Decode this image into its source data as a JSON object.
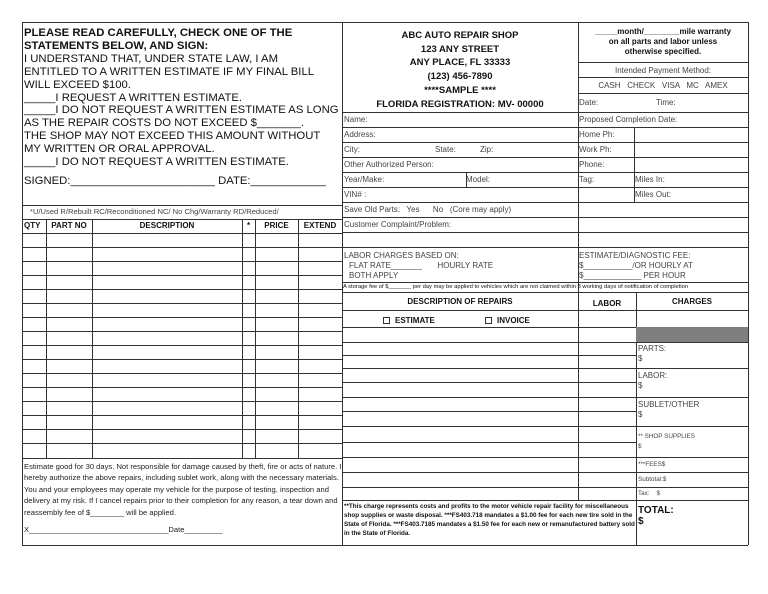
{
  "intro": {
    "lines": [
      "PLEASE READ CAREFULLY, CHECK ONE OF THE",
      "STATEMENTS BELOW, AND SIGN:",
      "I UNDERSTAND THAT, UNDER STATE LAW, I AM",
      "ENTITLED TO A WRITTEN ESTIMATE IF MY FINAL BILL",
      "WILL EXCEED $100.",
      "_____I REQUEST A WRITTEN ESTIMATE.",
      "_____I DO NOT REQUEST A WRITTEN ESTIMATE AS LONG",
      "AS THE REPAIR COSTS DO NOT EXCEED $_______.",
      "THE SHOP MAY NOT EXCEED THIS AMOUNT WITHOUT",
      "MY WRITTEN OR ORAL APPROVAL.",
      "_____I DO NOT REQUEST A WRITTEN ESTIMATE."
    ],
    "signed": "SIGNED:_______________________ DATE:____________"
  },
  "legend": "*U/Used  R/Rebuilt  RC/Reconditioned  NC/ No Chg/Warranty  RD/Reduced/",
  "parts_table": {
    "headers": [
      "QTY",
      "PART NO",
      "DESCRIPTION",
      "*",
      "PRICE",
      "EXTEND"
    ]
  },
  "terms": {
    "text": "Estimate good for 30 days. Not responsible for damage caused by theft, fire or acts of nature.  I hereby authorize the above repairs, including sublet work, along with the necessary materials.  You and your employees may operate my vehicle for the purpose of testing, inspection and delivery at my risk.  If I cancel repairs prior to their completion for any reason, a tear down and reassembly fee of $________ will be applied.",
    "signature": "X_________________________________Date_________"
  },
  "shop": {
    "name": "ABC AUTO REPAIR SHOP",
    "street": "123 ANY STREET",
    "city": "ANY PLACE, FL 33333",
    "phone": "(123) 456-7890",
    "sample": "****SAMPLE ****",
    "registration": "FLORIDA REGISTRATION:  MV- 00000"
  },
  "warranty": {
    "line1": "_____month/________mile warranty",
    "line2": "on all parts and labor unless",
    "line3": "otherwise specified."
  },
  "payment": {
    "label": "Intended Payment Method:",
    "options": "CASH   CHECK   VISA   MC   AMEX"
  },
  "fields": {
    "date": "Date:",
    "time": "Time:",
    "name": "Name:",
    "proposed": "Proposed Completion Date:",
    "address": "Address:",
    "home_ph": "Home Ph:",
    "city": "City:",
    "state": "State:",
    "zip": "Zip:",
    "work_ph": "Work Ph:",
    "other_person": "Other Authorized Person:",
    "phone": "Phone:",
    "year_make": "Year/Make:",
    "model": "Model:",
    "tag": "Tag:",
    "miles_in": "Miles In:",
    "vin": "VIN# :",
    "miles_out": "Miles Out:",
    "save_old_parts": "Save Old Parts:   Yes      No   (Core may apply)",
    "complaint": "Customer Complaint/Problem:"
  },
  "labor_charges": {
    "title": "LABOR CHARGES BASED ON:",
    "line2": "FLAT RATE_______       HOURLY RATE",
    "line3": "BOTH APPLY"
  },
  "diag_fee": {
    "title": "ESTIMATE/DIAGNOSTIC FEE:",
    "line2": "$___________/OR HOURLY AT",
    "line3": "$_____________  PER HOUR"
  },
  "storage": "A storage fee of $_______ per day may be applied to vehicles which are not claimed within 3 working days of notification of completion",
  "repairs": {
    "header": "DESCRIPTION OF REPAIRS",
    "labor": "LABOR",
    "charges": "CHARGES",
    "estimate": "ESTIMATE",
    "invoice": "INVOICE"
  },
  "charges": {
    "parts": "PARTS:",
    "labor": "LABOR:",
    "sublet": "SUBLET/OTHER",
    "shop_supplies": "** SHOP SUPPLIES",
    "dollar": "$",
    "fees": "***FEES$",
    "subtotal": "Subtotal:$",
    "tax": "Tax:    $",
    "total": "TOTAL:"
  },
  "footnote": "**This charge represents costs and profits to the motor vehicle repair facility for miscellaneous shop supplies or waste disposal. ***FS403.718 mandates a $1.00 fee for each new tire sold in the State of Florida.  ***FS403.7185 mandates a $1.50 fee for each new or remanufactured battery sold in the State of Florida.",
  "colors": {
    "shade": "#7f7f7f",
    "lines": "#333333"
  }
}
